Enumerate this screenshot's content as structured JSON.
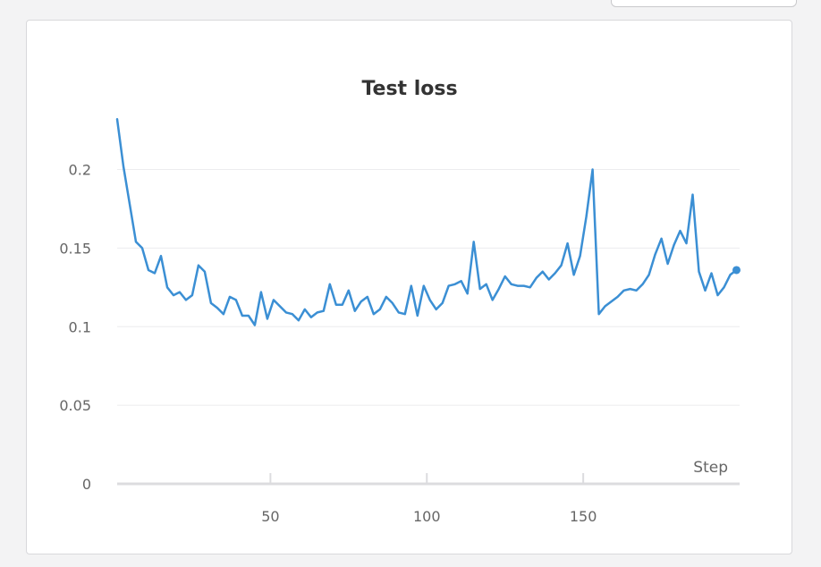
{
  "chart_data": {
    "type": "line",
    "title": "Test loss",
    "xlabel": "Step",
    "ylabel": "",
    "xlim": [
      1,
      200
    ],
    "ylim": [
      0,
      0.235
    ],
    "x_ticks": [
      50,
      100,
      150
    ],
    "y_ticks": [
      0,
      0.05,
      0.1,
      0.15,
      0.2
    ],
    "y_tick_labels": [
      "0",
      "0.05",
      "0.1",
      "0.15",
      "0.2"
    ],
    "grid": "horizontal",
    "line_color": "#3b8fd4",
    "end_marker": true,
    "series": [
      {
        "x": [
          1,
          3,
          5,
          7,
          9,
          11,
          13,
          15,
          17,
          19,
          21,
          23,
          25,
          27,
          29,
          31,
          33,
          35,
          37,
          39,
          41,
          43,
          45,
          47,
          49,
          51,
          53,
          55,
          57,
          59,
          61,
          63,
          65,
          67,
          69,
          71,
          73,
          75,
          77,
          79,
          81,
          83,
          85,
          87,
          89,
          91,
          93,
          95,
          97,
          99,
          101,
          103,
          105,
          107,
          109,
          111,
          113,
          115,
          117,
          119,
          121,
          123,
          125,
          127,
          129,
          131,
          133,
          135,
          137,
          139,
          141,
          143,
          145,
          147,
          149,
          151,
          153,
          155,
          157,
          159,
          161,
          163,
          165,
          167,
          169,
          171,
          173,
          175,
          177,
          179,
          181,
          183,
          185,
          187,
          189,
          191,
          193,
          195,
          197,
          199
        ],
        "values": [
          0.232,
          0.202,
          0.178,
          0.154,
          0.15,
          0.136,
          0.134,
          0.145,
          0.125,
          0.12,
          0.122,
          0.117,
          0.12,
          0.139,
          0.135,
          0.115,
          0.112,
          0.108,
          0.119,
          0.117,
          0.107,
          0.107,
          0.101,
          0.122,
          0.105,
          0.117,
          0.113,
          0.109,
          0.108,
          0.104,
          0.111,
          0.106,
          0.109,
          0.11,
          0.127,
          0.114,
          0.114,
          0.123,
          0.11,
          0.116,
          0.119,
          0.108,
          0.111,
          0.119,
          0.115,
          0.109,
          0.108,
          0.126,
          0.107,
          0.126,
          0.117,
          0.111,
          0.115,
          0.126,
          0.127,
          0.129,
          0.121,
          0.154,
          0.124,
          0.127,
          0.117,
          0.124,
          0.132,
          0.127,
          0.126,
          0.126,
          0.125,
          0.131,
          0.135,
          0.13,
          0.134,
          0.139,
          0.153,
          0.133,
          0.145,
          0.17,
          0.2,
          0.108,
          0.113,
          0.116,
          0.119,
          0.123,
          0.124,
          0.123,
          0.127,
          0.133,
          0.146,
          0.156,
          0.14,
          0.152,
          0.161,
          0.153,
          0.184,
          0.135,
          0.123,
          0.134,
          0.12,
          0.125,
          0.133,
          0.136
        ]
      }
    ]
  }
}
